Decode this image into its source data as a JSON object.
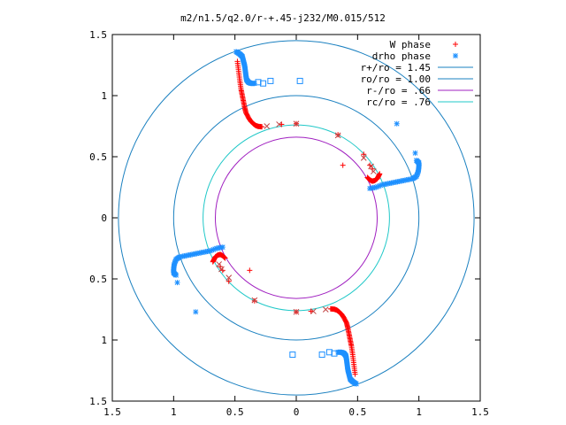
{
  "chart_data": {
    "type": "scatter",
    "title": "m2/n1.5/q2.0/r-+.45-j232/M0.015/512",
    "xlabel": "",
    "ylabel": "",
    "xlim": [
      -1.5,
      1.5
    ],
    "ylim": [
      -1.5,
      1.5
    ],
    "grid": false,
    "legend_position": "top-right",
    "x_tick_labels": [
      "1.5",
      "1",
      "0.5",
      "0",
      "0.5",
      "1",
      "1.5"
    ],
    "x_tick_values": [
      -1.5,
      -1,
      -0.5,
      0,
      0.5,
      1,
      1.5
    ],
    "y_tick_labels": [
      "1.5",
      "1",
      "0.5",
      "0",
      "0.5",
      "1",
      "1.5"
    ],
    "y_tick_values": [
      1.5,
      1,
      0.5,
      0,
      -0.5,
      -1,
      -1.5
    ],
    "legend": [
      {
        "label": "W phase",
        "marker": "plus",
        "color": "#ff0000"
      },
      {
        "label": "drho phase",
        "marker": "star",
        "color": "#1e90ff"
      },
      {
        "label": "r+/ro = 1.45",
        "marker": "line",
        "color": "#1a80c0"
      },
      {
        "label": "ro/ro = 1.00",
        "marker": "line",
        "color": "#1a80c0"
      },
      {
        "label": "r-/ro =  .66",
        "marker": "line",
        "color": "#a020c0"
      },
      {
        "label": "rc/ro =  .76",
        "marker": "line",
        "color": "#20c8c8"
      }
    ],
    "circles": [
      {
        "radius": 1.45,
        "color": "#1a80c0"
      },
      {
        "radius": 1.0,
        "color": "#1a80c0"
      },
      {
        "radius": 0.66,
        "color": "#a020c0"
      },
      {
        "radius": 0.76,
        "color": "#20c8c8"
      }
    ],
    "w_branch": [
      [
        -0.48,
        1.28
      ],
      [
        -0.47,
        1.2
      ],
      [
        -0.46,
        1.12
      ],
      [
        -0.45,
        1.05
      ],
      [
        -0.44,
        1.0
      ],
      [
        -0.43,
        0.95
      ],
      [
        -0.42,
        0.9
      ],
      [
        -0.41,
        0.86
      ],
      [
        -0.39,
        0.82
      ],
      [
        -0.37,
        0.79
      ],
      [
        -0.35,
        0.77
      ],
      [
        -0.33,
        0.755
      ],
      [
        -0.31,
        0.748
      ],
      [
        -0.28,
        0.745
      ]
    ],
    "w_sparse": [
      [
        -0.12,
        0.765
      ],
      [
        0.0,
        0.77
      ],
      [
        0.34,
        0.68
      ],
      [
        0.55,
        0.52
      ],
      [
        0.6,
        0.43
      ],
      [
        0.62,
        0.4
      ],
      [
        0.38,
        0.43
      ]
    ],
    "w_cluster": [
      [
        0.58,
        0.33
      ],
      [
        0.6,
        0.31
      ],
      [
        0.62,
        0.3
      ],
      [
        0.64,
        0.305
      ],
      [
        0.66,
        0.32
      ],
      [
        0.67,
        0.34
      ],
      [
        0.68,
        0.36
      ]
    ],
    "w_sparse_x": [
      [
        -0.24,
        0.75
      ],
      [
        -0.14,
        0.765
      ],
      [
        0.0,
        0.77
      ],
      [
        0.34,
        0.675
      ],
      [
        0.55,
        0.49
      ],
      [
        0.61,
        0.42
      ],
      [
        0.63,
        0.38
      ]
    ],
    "drho_branch": [
      [
        -0.49,
        1.36
      ],
      [
        -0.46,
        1.34
      ],
      [
        -0.44,
        1.32
      ],
      [
        -0.43,
        1.28
      ],
      [
        -0.42,
        1.24
      ],
      [
        -0.415,
        1.2
      ],
      [
        -0.41,
        1.16
      ],
      [
        -0.405,
        1.13
      ],
      [
        -0.39,
        1.11
      ],
      [
        -0.37,
        1.1
      ],
      [
        -0.34,
        1.1
      ]
    ],
    "drho_sparse": [
      [
        0.82,
        0.77
      ],
      [
        0.97,
        0.53
      ]
    ],
    "drho_squares": [
      [
        -0.21,
        1.12
      ],
      [
        0.03,
        1.12
      ],
      [
        -0.31,
        1.11
      ],
      [
        -0.27,
        1.1
      ]
    ],
    "drho_mid_branch": [
      [
        0.6,
        0.24
      ],
      [
        0.65,
        0.25
      ],
      [
        0.7,
        0.27
      ],
      [
        0.75,
        0.28
      ],
      [
        0.8,
        0.29
      ],
      [
        0.85,
        0.3
      ],
      [
        0.9,
        0.31
      ],
      [
        0.95,
        0.32
      ],
      [
        0.98,
        0.34
      ],
      [
        0.995,
        0.38
      ],
      [
        1.0,
        0.42
      ],
      [
        1.0,
        0.45
      ],
      [
        0.98,
        0.47
      ]
    ]
  }
}
